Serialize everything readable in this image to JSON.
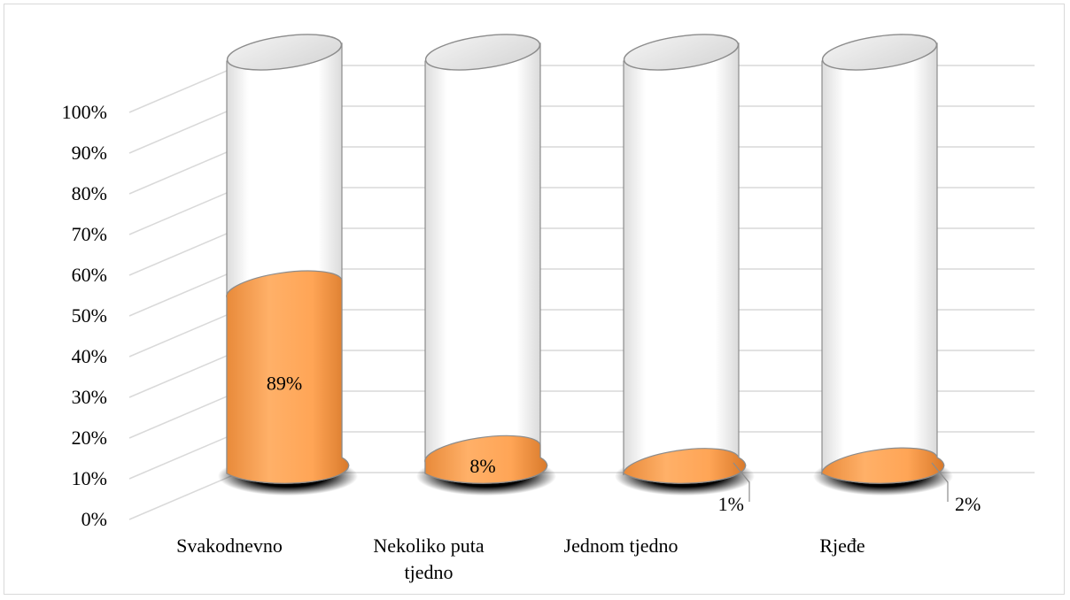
{
  "chart_data": {
    "type": "bar",
    "style": "3d-cylinder-100-percent-stacked",
    "categories": [
      "Svakodnevno",
      "Nekoliko puta tjedno",
      "Jednom tjedno",
      "Rjeđe"
    ],
    "category_lines": [
      [
        "Svakodnevno"
      ],
      [
        "Nekoliko puta",
        "tjedno"
      ],
      [
        "Jednom tjedno"
      ],
      [
        "Rjeđe"
      ]
    ],
    "values": [
      89,
      8,
      1,
      2
    ],
    "data_labels": [
      "89%",
      "8%",
      "1%",
      "2%"
    ],
    "y_ticks": [
      "0%",
      "10%",
      "20%",
      "30%",
      "40%",
      "50%",
      "60%",
      "70%",
      "80%",
      "90%",
      "100%"
    ],
    "ylim": [
      0,
      100
    ],
    "grid": true,
    "legend": "none",
    "colors": {
      "fill": "#f59e4f",
      "fill_light": "#ffb871",
      "fill_dark": "#d97a2b",
      "empty": "#ffffff",
      "outline": "#8c8c8c",
      "grid": "#d9d9d9",
      "shadow": "#000000"
    }
  }
}
